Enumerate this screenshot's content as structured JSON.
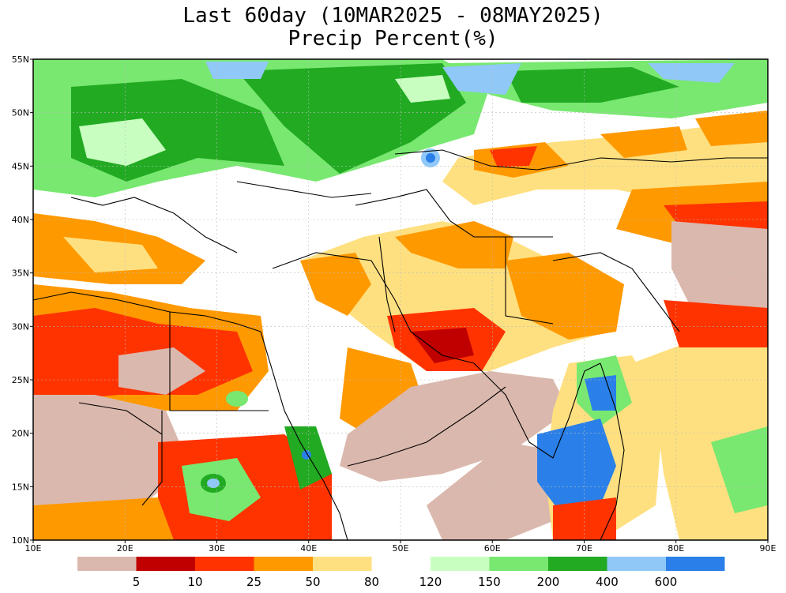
{
  "title": {
    "line1": "Last 60day (10MAR2025 - 08MAY2025)",
    "line2": "Precip Percent(%)"
  },
  "axes": {
    "lat_ticks": [
      "55N",
      "50N",
      "45N",
      "40N",
      "35N",
      "30N",
      "25N",
      "20N",
      "15N",
      "10N"
    ],
    "lon_ticks": [
      "10E",
      "20E",
      "30E",
      "40E",
      "50E",
      "60E",
      "70E",
      "80E",
      "90E"
    ],
    "lat_range": [
      10,
      55
    ],
    "lon_range": [
      10,
      90
    ]
  },
  "legend": {
    "dry_labels": [
      "5",
      "10",
      "25",
      "50",
      "80"
    ],
    "wet_labels": [
      "120",
      "150",
      "200",
      "400",
      "600"
    ],
    "dry_colors": [
      "#dbb8ad",
      "#c00000",
      "#ff3300",
      "#ff9900",
      "#ffe080"
    ],
    "wet_colors": [
      "#c8ffc0",
      "#78e870",
      "#22aa22",
      "#90c8f8",
      "#2a80e8"
    ]
  },
  "colors": {
    "neutral": "#ffffff",
    "border": "#000000",
    "admin_border": "#999999",
    "grid": "#bbbbbb"
  }
}
